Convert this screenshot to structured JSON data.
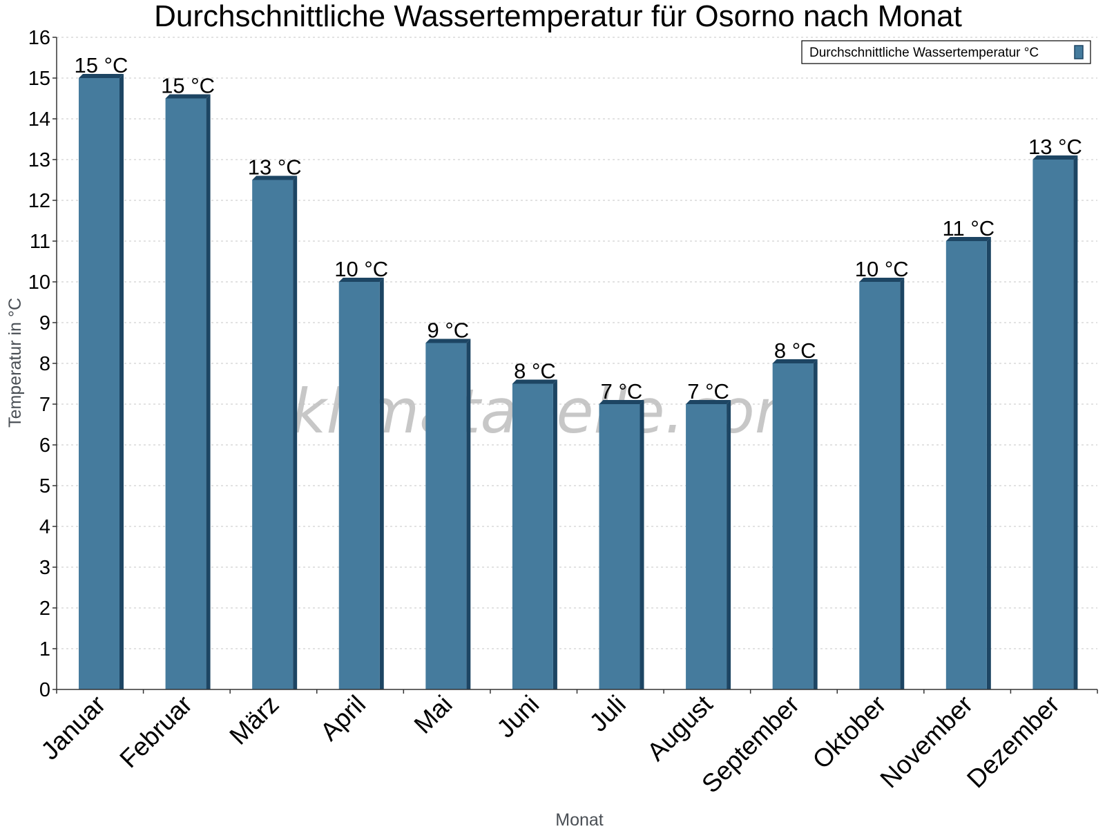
{
  "chart_data": {
    "type": "bar",
    "title": "Durchschnittliche Wassertemperatur für Osorno nach Monat",
    "xlabel": "Monat",
    "ylabel": "Temperatur in °C",
    "ylim": [
      0,
      16
    ],
    "yticks": [
      0,
      1,
      2,
      3,
      4,
      5,
      6,
      7,
      8,
      9,
      10,
      11,
      12,
      13,
      14,
      15,
      16
    ],
    "grid": true,
    "legend_position": "top-right",
    "categories": [
      "Januar",
      "Februar",
      "März",
      "April",
      "Mai",
      "Juni",
      "Juli",
      "August",
      "September",
      "Oktober",
      "November",
      "Dezember"
    ],
    "series": [
      {
        "name": "Durchschnittliche Wassertemperatur °C",
        "color": "#457b9d",
        "values": [
          15.0,
          14.5,
          12.5,
          10.0,
          8.5,
          7.5,
          7.0,
          7.0,
          8.0,
          10.0,
          11.0,
          13.0
        ],
        "labels": [
          "15 °C",
          "15 °C",
          "13 °C",
          "10 °C",
          "9 °C",
          "8 °C",
          "7 °C",
          "7 °C",
          "8 °C",
          "10 °C",
          "11 °C",
          "13 °C"
        ]
      }
    ],
    "watermark": "klimatabelle.com"
  }
}
